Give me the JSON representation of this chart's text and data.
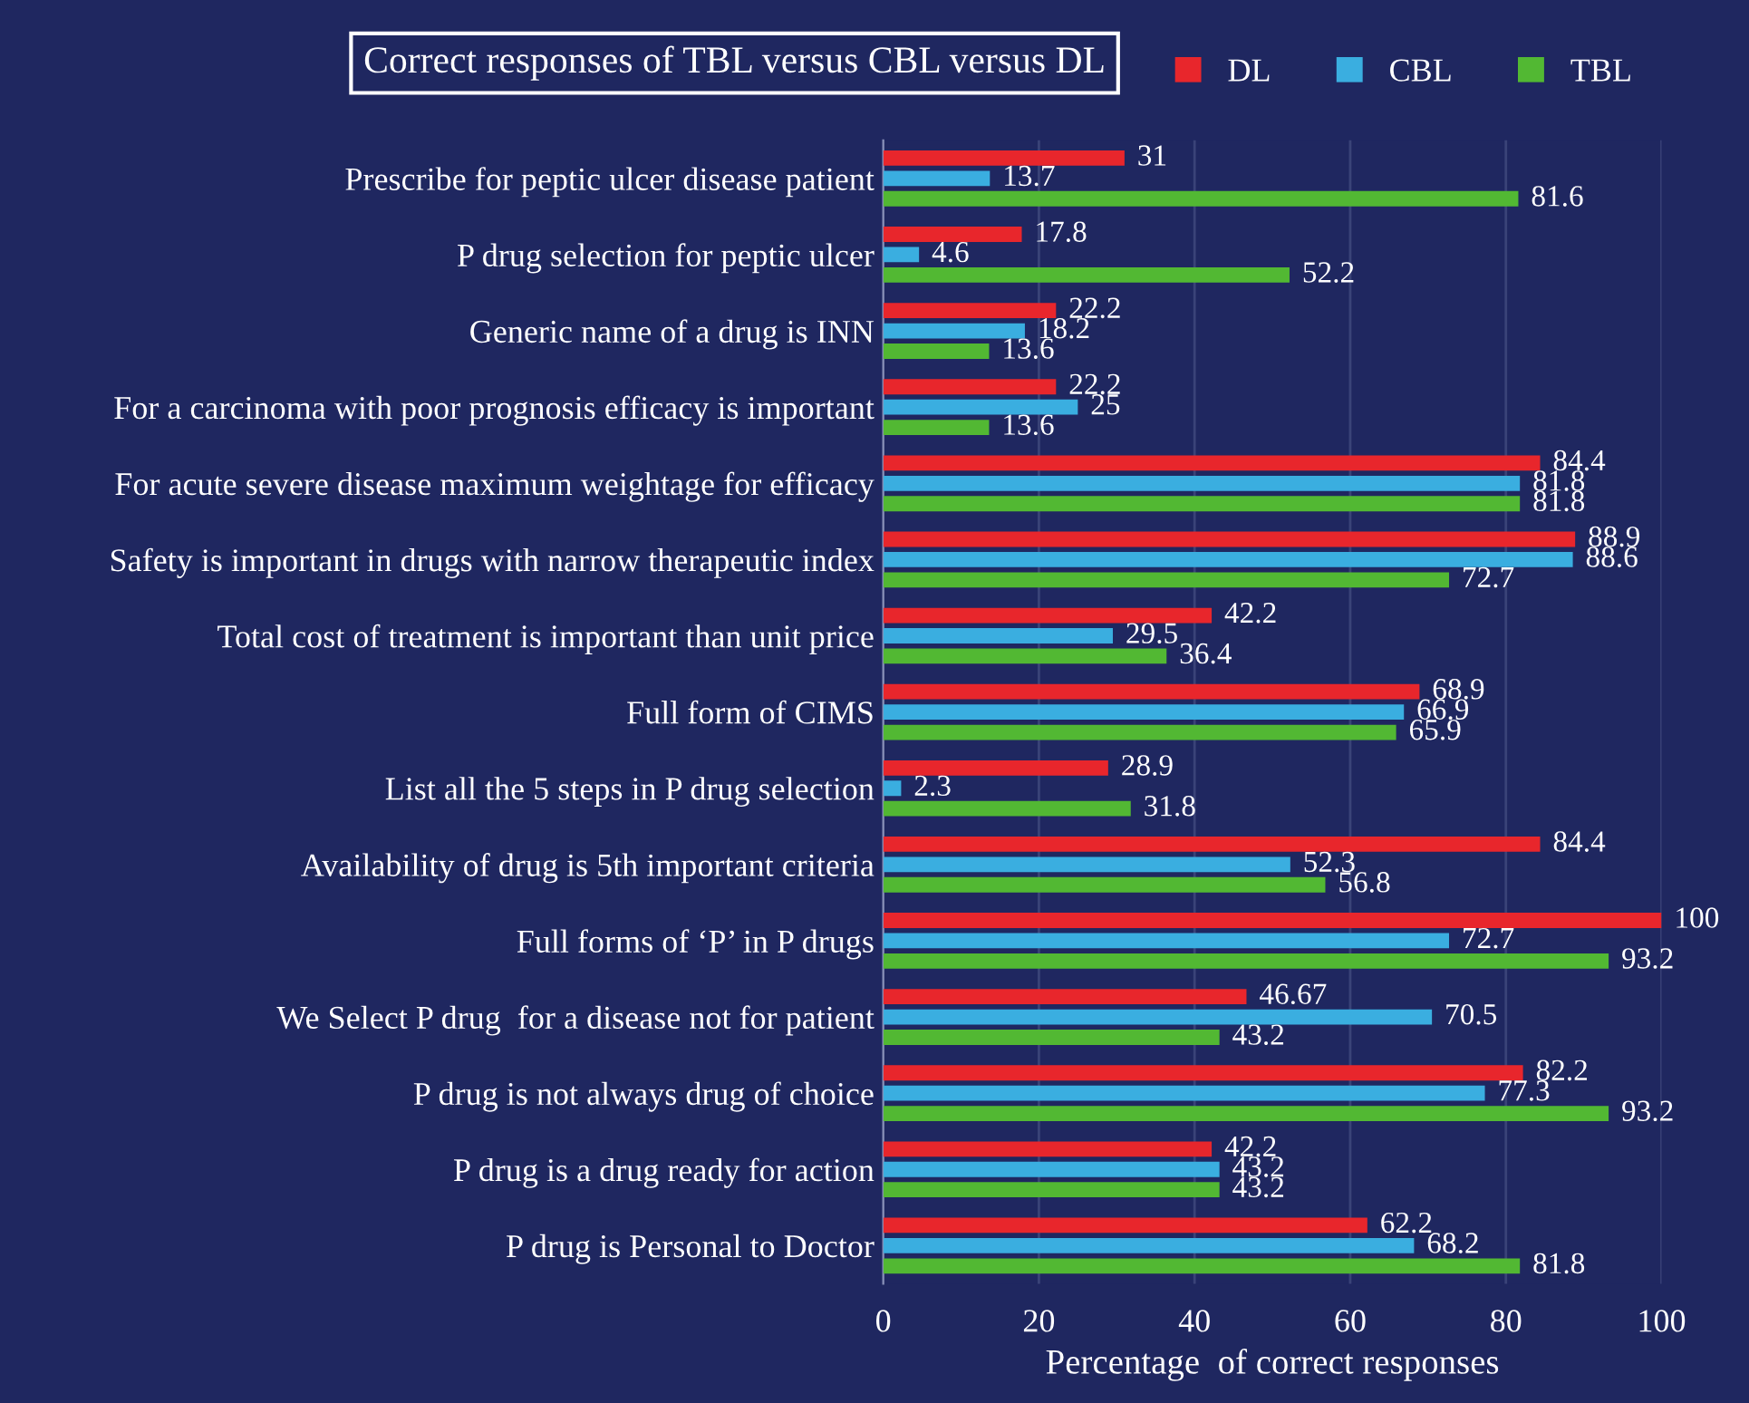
{
  "chart_data": {
    "type": "bar",
    "orientation": "horizontal",
    "title": "Correct responses of TBL versus CBL versus DL",
    "xlabel": "Percentage  of correct responses",
    "categories": [
      "Prescribe for peptic ulcer disease patient",
      "P drug selection for peptic ulcer",
      "Generic name of a drug is INN",
      "For a carcinoma with poor prognosis efficacy is important",
      "For acute severe disease maximum weightage for efficacy",
      "Safety is important in drugs with narrow therapeutic index",
      "Total cost of treatment is important than unit price",
      "Full form of CIMS",
      "List all the 5 steps in P drug selection",
      "Availability of drug is 5th important criteria",
      "Full forms of ‘P’ in P drugs",
      "We Select P drug  for a disease not for patient",
      "P drug is not always drug of choice",
      "P drug is a drug ready for action",
      "P drug is Personal to Doctor"
    ],
    "series": [
      {
        "name": "DL",
        "color": "#e8262c",
        "values": [
          31,
          17.8,
          22.2,
          22.2,
          84.4,
          88.9,
          42.2,
          68.9,
          28.9,
          84.4,
          100,
          46.67,
          82.2,
          42.2,
          62.2
        ]
      },
      {
        "name": "CBL",
        "color": "#3aaee0",
        "values": [
          13.7,
          4.6,
          18.2,
          25,
          81.8,
          88.6,
          29.5,
          66.9,
          2.3,
          52.3,
          72.7,
          70.5,
          77.3,
          43.2,
          68.2
        ]
      },
      {
        "name": "TBL",
        "color": "#52b833",
        "values": [
          81.6,
          52.2,
          13.6,
          13.6,
          81.8,
          72.7,
          36.4,
          65.9,
          31.8,
          56.8,
          93.2,
          43.2,
          93.2,
          43.2,
          81.8
        ]
      }
    ],
    "xlim": [
      0,
      100
    ],
    "xticks": [
      0,
      20,
      40,
      60,
      80,
      100
    ],
    "grid": "x",
    "legend": "top right",
    "data_labels": true
  }
}
